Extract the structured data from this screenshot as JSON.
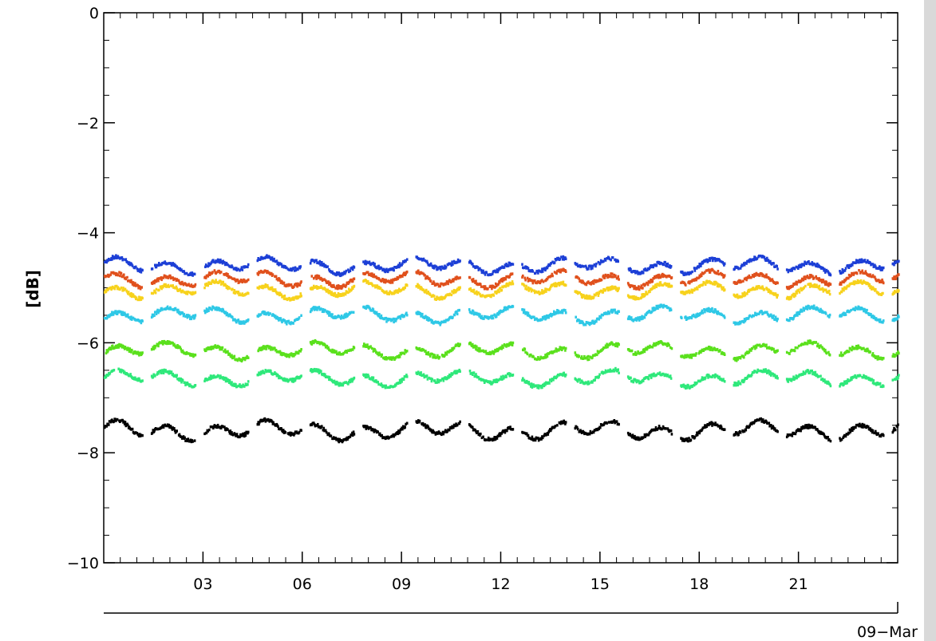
{
  "chart_data": {
    "type": "scatter",
    "title": "",
    "ylabel": "[dB]",
    "xlabel": "",
    "date_label": "09−Mar",
    "ylim": [
      -10,
      0
    ],
    "xlim": [
      0,
      24
    ],
    "y_ticks": [
      0,
      -2,
      -4,
      -6,
      -8,
      -10
    ],
    "y_tick_labels": [
      "0",
      "−2",
      "−4",
      "−6",
      "−8",
      "−10"
    ],
    "x_ticks": [
      3,
      6,
      9,
      12,
      15,
      18,
      21
    ],
    "x_tick_labels": [
      "03",
      "06",
      "09",
      "12",
      "15",
      "18",
      "21"
    ],
    "grid": false,
    "series": [
      {
        "color": "#1c3fd6",
        "level": -4.6,
        "amplitude": 0.1
      },
      {
        "color": "#e0501c",
        "level": -4.85,
        "amplitude": 0.1
      },
      {
        "color": "#f7d21c",
        "level": -5.05,
        "amplitude": 0.1
      },
      {
        "color": "#2ec8e6",
        "level": -5.5,
        "amplitude": 0.1
      },
      {
        "color": "#5ae01c",
        "level": -6.15,
        "amplitude": 0.1
      },
      {
        "color": "#2ee87a",
        "level": -6.65,
        "amplitude": 0.1
      },
      {
        "color": "#000000",
        "level": -7.6,
        "amplitude": 0.12
      }
    ]
  },
  "rightbar_color": "#d6d6d6"
}
